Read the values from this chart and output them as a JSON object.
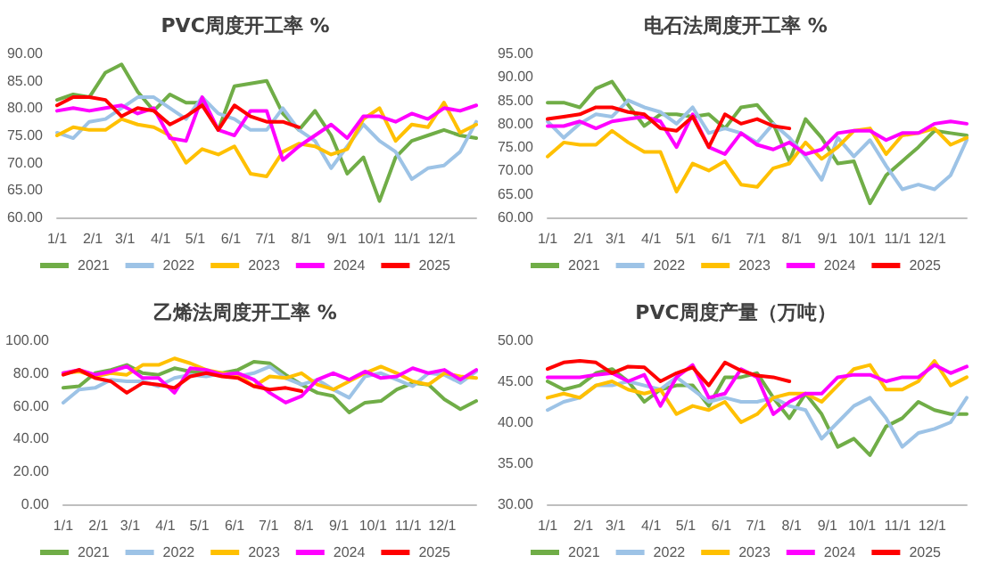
{
  "chart_data": [
    {
      "type": "line",
      "title": "PVC周度开工率 %",
      "legend": "bottom",
      "marker": "none",
      "line_style": "solid",
      "x": [
        "--01-01",
        "--01-15",
        "--01-29",
        "--02-12",
        "--02-26",
        "--03-12",
        "--03-26",
        "--04-09",
        "--04-23",
        "--05-07",
        "--05-21",
        "--06-04",
        "--06-18",
        "--07-02",
        "--07-16",
        "--07-30",
        "--08-13",
        "--08-27",
        "--09-10",
        "--09-24",
        "--10-08",
        "--10-22",
        "--11-05",
        "--11-19",
        "--12-03",
        "--12-17",
        "--12-31"
      ],
      "xlim": [
        "--01-01",
        "--12-31"
      ],
      "xticks": [
        {
          "value": "--01-01",
          "label": "1/1"
        },
        {
          "value": "--02-01",
          "label": "2/1"
        },
        {
          "value": "--03-01",
          "label": "3/1"
        },
        {
          "value": "--04-01",
          "label": "4/1"
        },
        {
          "value": "--05-01",
          "label": "5/1"
        },
        {
          "value": "--06-01",
          "label": "6/1"
        },
        {
          "value": "--07-01",
          "label": "7/1"
        },
        {
          "value": "--08-01",
          "label": "8/1"
        },
        {
          "value": "--09-01",
          "label": "9/1"
        },
        {
          "value": "--10-01",
          "label": "10/1"
        },
        {
          "value": "--11-01",
          "label": "11/1"
        },
        {
          "value": "--12-01",
          "label": "12/1"
        }
      ],
      "ylim": [
        60,
        90
      ],
      "yticks": [
        {
          "value": 60,
          "label": "60.00"
        },
        {
          "value": 65,
          "label": "65.00"
        },
        {
          "value": 70,
          "label": "70.00"
        },
        {
          "value": 75,
          "label": "75.00"
        },
        {
          "value": 80,
          "label": "80.00"
        },
        {
          "value": 85,
          "label": "85.00"
        },
        {
          "value": 90,
          "label": "90.00"
        }
      ],
      "series": [
        {
          "name": "2021",
          "color": "#70ad47",
          "values": [
            81.5,
            82.5,
            82,
            86.5,
            88,
            83,
            79.5,
            82.5,
            81,
            81,
            76,
            84,
            84.5,
            85,
            79,
            76,
            79.5,
            75,
            68,
            71,
            63,
            71,
            74,
            75,
            76,
            75,
            74.5
          ]
        },
        {
          "name": "2022",
          "color": "#9dc3e6",
          "values": [
            75.5,
            74.5,
            77.5,
            78,
            80,
            82,
            82,
            80,
            78,
            82,
            79,
            78,
            76,
            76,
            80,
            76,
            74,
            69,
            73,
            77,
            74,
            72,
            67,
            69,
            69.5,
            72,
            77.5
          ]
        },
        {
          "name": "2023",
          "color": "#ffc000",
          "values": [
            75,
            76.5,
            76,
            76,
            78,
            77,
            76.5,
            75,
            70,
            72.5,
            71.5,
            73,
            68,
            67.5,
            72,
            73.5,
            73,
            71.5,
            72.5,
            78,
            80,
            74,
            77,
            76.5,
            81,
            75.5,
            77
          ]
        },
        {
          "name": "2024",
          "color": "#ff00ff",
          "values": [
            79.5,
            80,
            79.5,
            80,
            80.5,
            79,
            80,
            74.5,
            74,
            82,
            76,
            75,
            79.5,
            79.5,
            70.5,
            73,
            75,
            77,
            74.5,
            78.5,
            78.5,
            77.5,
            79,
            78,
            80,
            79.5,
            80.5
          ]
        },
        {
          "name": "2025",
          "color": "#ff0000",
          "values": [
            80.5,
            82,
            82,
            81.5,
            78.5,
            80,
            79.5,
            77,
            78.5,
            80.5,
            76,
            80.5,
            78.5,
            77.5,
            77.5,
            76.5,
            null,
            null,
            null,
            null,
            null,
            null,
            null,
            null,
            null,
            null,
            null
          ]
        }
      ]
    },
    {
      "type": "line",
      "title": "电石法周度开工率 %",
      "legend": "bottom",
      "marker": "none",
      "line_style": "solid",
      "x": [
        "--01-01",
        "--01-15",
        "--01-29",
        "--02-12",
        "--02-26",
        "--03-12",
        "--03-26",
        "--04-09",
        "--04-23",
        "--05-07",
        "--05-21",
        "--06-04",
        "--06-18",
        "--07-02",
        "--07-16",
        "--07-30",
        "--08-13",
        "--08-27",
        "--09-10",
        "--09-24",
        "--10-08",
        "--10-22",
        "--11-05",
        "--11-19",
        "--12-03",
        "--12-17",
        "--12-31"
      ],
      "xlim": [
        "--01-01",
        "--12-31"
      ],
      "xticks": [
        {
          "value": "--01-01",
          "label": "1/1"
        },
        {
          "value": "--02-01",
          "label": "2/1"
        },
        {
          "value": "--03-01",
          "label": "3/1"
        },
        {
          "value": "--04-01",
          "label": "4/1"
        },
        {
          "value": "--05-01",
          "label": "5/1"
        },
        {
          "value": "--06-01",
          "label": "6/1"
        },
        {
          "value": "--07-01",
          "label": "7/1"
        },
        {
          "value": "--08-01",
          "label": "8/1"
        },
        {
          "value": "--09-01",
          "label": "9/1"
        },
        {
          "value": "--10-01",
          "label": "10/1"
        },
        {
          "value": "--11-01",
          "label": "11/1"
        },
        {
          "value": "--12-01",
          "label": "12/1"
        }
      ],
      "ylim": [
        60,
        95
      ],
      "yticks": [
        {
          "value": 60,
          "label": "60.00"
        },
        {
          "value": 65,
          "label": "65.00"
        },
        {
          "value": 70,
          "label": "70.00"
        },
        {
          "value": 75,
          "label": "75.00"
        },
        {
          "value": 80,
          "label": "80.00"
        },
        {
          "value": 85,
          "label": "85.00"
        },
        {
          "value": 90,
          "label": "90.00"
        },
        {
          "value": 95,
          "label": "95.00"
        }
      ],
      "series": [
        {
          "name": "2021",
          "color": "#70ad47",
          "values": [
            84.5,
            84.5,
            83.5,
            87.5,
            89,
            84,
            79.5,
            82,
            82,
            81.5,
            82,
            79,
            83.5,
            84,
            80,
            72,
            81,
            77,
            71.5,
            72,
            63,
            69,
            72,
            75,
            78.5,
            78,
            77.5
          ]
        },
        {
          "name": "2022",
          "color": "#9dc3e6",
          "values": [
            80.5,
            77,
            80,
            82,
            81.5,
            85,
            83.5,
            82.5,
            80,
            83.5,
            78,
            79,
            78,
            76,
            80,
            77,
            73,
            68,
            77,
            73,
            76.5,
            71,
            66,
            67,
            66,
            69,
            76.5
          ]
        },
        {
          "name": "2023",
          "color": "#ffc000",
          "values": [
            73,
            76,
            75.5,
            75.5,
            78.5,
            76,
            74,
            74,
            65.5,
            71.5,
            70,
            72,
            67,
            66.5,
            70.5,
            71.5,
            76,
            72.5,
            75,
            78.5,
            79,
            73.5,
            77.5,
            78,
            79,
            75.5,
            77
          ]
        },
        {
          "name": "2024",
          "color": "#ff00ff",
          "values": [
            79.5,
            79.5,
            80.5,
            79,
            80.5,
            81,
            81.5,
            80.5,
            75,
            82,
            75,
            73.5,
            78,
            75.5,
            74.5,
            76,
            73.5,
            74.5,
            78,
            78.5,
            78.5,
            76.5,
            78,
            78,
            80,
            80.5,
            80
          ]
        },
        {
          "name": "2025",
          "color": "#ff0000",
          "values": [
            81,
            81.5,
            82,
            83.5,
            83.5,
            82.5,
            82,
            79,
            78.5,
            81.5,
            75,
            82,
            80,
            81,
            79.5,
            79,
            null,
            null,
            null,
            null,
            null,
            null,
            null,
            null,
            null,
            null,
            null
          ]
        }
      ]
    },
    {
      "type": "line",
      "title": "乙烯法周度开工率 %",
      "legend": "bottom",
      "marker": "none",
      "line_style": "solid",
      "x": [
        "--01-01",
        "--01-15",
        "--01-29",
        "--02-12",
        "--02-26",
        "--03-12",
        "--03-26",
        "--04-09",
        "--04-23",
        "--05-07",
        "--05-21",
        "--06-04",
        "--06-18",
        "--07-02",
        "--07-16",
        "--07-30",
        "--08-13",
        "--08-27",
        "--09-10",
        "--09-24",
        "--10-08",
        "--10-22",
        "--11-05",
        "--11-19",
        "--12-03",
        "--12-17",
        "--12-31"
      ],
      "xlim": [
        "--01-01",
        "--12-31"
      ],
      "xticks": [
        {
          "value": "--01-01",
          "label": "1/1"
        },
        {
          "value": "--02-01",
          "label": "2/1"
        },
        {
          "value": "--03-01",
          "label": "3/1"
        },
        {
          "value": "--04-01",
          "label": "4/1"
        },
        {
          "value": "--05-01",
          "label": "5/1"
        },
        {
          "value": "--06-01",
          "label": "6/1"
        },
        {
          "value": "--07-01",
          "label": "7/1"
        },
        {
          "value": "--08-01",
          "label": "8/1"
        },
        {
          "value": "--09-01",
          "label": "9/1"
        },
        {
          "value": "--10-01",
          "label": "10/1"
        },
        {
          "value": "--11-01",
          "label": "11/1"
        },
        {
          "value": "--12-01",
          "label": "12/1"
        }
      ],
      "ylim": [
        0,
        100
      ],
      "yticks": [
        {
          "value": 0,
          "label": "0.00"
        },
        {
          "value": 20,
          "label": "20.00"
        },
        {
          "value": 40,
          "label": "40.00"
        },
        {
          "value": 60,
          "label": "60.00"
        },
        {
          "value": 80,
          "label": "80.00"
        },
        {
          "value": 100,
          "label": "100.00"
        }
      ],
      "series": [
        {
          "name": "2021",
          "color": "#70ad47",
          "values": [
            71,
            72,
            80,
            82,
            85,
            80,
            79,
            83,
            81,
            80,
            80,
            82,
            87,
            86,
            79,
            73,
            68,
            66,
            56,
            62,
            63,
            70,
            74,
            73,
            64,
            58,
            63
          ]
        },
        {
          "name": "2022",
          "color": "#9dc3e6",
          "values": [
            62,
            70,
            71,
            76,
            75,
            75,
            72,
            77,
            79,
            78,
            80,
            78,
            80,
            84,
            77,
            73,
            76,
            70,
            65,
            78,
            80,
            76,
            72,
            80,
            79,
            74,
            81
          ]
        },
        {
          "name": "2023",
          "color": "#ffc000",
          "values": [
            80,
            81,
            78,
            80,
            79,
            85,
            85,
            89,
            86,
            82,
            80,
            79,
            72,
            78,
            77,
            80,
            73,
            70,
            75,
            80,
            84,
            80,
            75,
            73,
            80,
            78,
            77
          ]
        },
        {
          "name": "2024",
          "color": "#ff00ff",
          "values": [
            80,
            82,
            79,
            81,
            84,
            77,
            77,
            68,
            83,
            82,
            79,
            80,
            76,
            68,
            62,
            66,
            76,
            80,
            76,
            81,
            77,
            78,
            83,
            80,
            82,
            76,
            82
          ]
        },
        {
          "name": "2025",
          "color": "#ff0000",
          "values": [
            79,
            82,
            77,
            75,
            68,
            74,
            73,
            71,
            78,
            80,
            78,
            77,
            72,
            70,
            71,
            69,
            null,
            null,
            null,
            null,
            null,
            null,
            null,
            null,
            null,
            null,
            null
          ]
        }
      ]
    },
    {
      "type": "line",
      "title": "PVC周度产量（万吨）",
      "legend": "bottom",
      "marker": "none",
      "line_style": "solid",
      "x": [
        "--01-01",
        "--01-15",
        "--01-29",
        "--02-12",
        "--02-26",
        "--03-12",
        "--03-26",
        "--04-09",
        "--04-23",
        "--05-07",
        "--05-21",
        "--06-04",
        "--06-18",
        "--07-02",
        "--07-16",
        "--07-30",
        "--08-13",
        "--08-27",
        "--09-10",
        "--09-24",
        "--10-08",
        "--10-22",
        "--11-05",
        "--11-19",
        "--12-03",
        "--12-17",
        "--12-31"
      ],
      "xlim": [
        "--01-01",
        "--12-31"
      ],
      "xticks": [
        {
          "value": "--01-01",
          "label": "1/1"
        },
        {
          "value": "--02-01",
          "label": "2/1"
        },
        {
          "value": "--03-01",
          "label": "3/1"
        },
        {
          "value": "--04-01",
          "label": "4/1"
        },
        {
          "value": "--05-01",
          "label": "5/1"
        },
        {
          "value": "--06-01",
          "label": "6/1"
        },
        {
          "value": "--07-01",
          "label": "7/1"
        },
        {
          "value": "--08-01",
          "label": "8/1"
        },
        {
          "value": "--09-01",
          "label": "9/1"
        },
        {
          "value": "--10-01",
          "label": "10/1"
        },
        {
          "value": "--11-01",
          "label": "11/1"
        },
        {
          "value": "--12-01",
          "label": "12/1"
        }
      ],
      "ylim": [
        30,
        50
      ],
      "yticks": [
        {
          "value": 30,
          "label": "30.00"
        },
        {
          "value": 35,
          "label": "35.00"
        },
        {
          "value": 40,
          "label": "40.00"
        },
        {
          "value": 45,
          "label": "45.00"
        },
        {
          "value": 50,
          "label": "50.00"
        }
      ],
      "series": [
        {
          "name": "2021",
          "color": "#70ad47",
          "values": [
            45,
            44,
            44.5,
            46,
            46.5,
            45,
            42.5,
            44,
            44.5,
            44.5,
            42,
            45.5,
            45.5,
            46,
            43,
            40.5,
            43.5,
            41,
            37,
            38,
            36,
            39.5,
            40.5,
            42.5,
            41.5,
            41,
            41
          ]
        },
        {
          "name": "2022",
          "color": "#9dc3e6",
          "values": [
            41.5,
            42.5,
            43,
            44.5,
            44.5,
            45,
            44.5,
            44,
            45.5,
            44,
            42.5,
            43,
            42.5,
            42.5,
            43,
            42,
            41.5,
            38,
            40,
            42,
            43,
            40.5,
            37,
            38.7,
            39.2,
            40,
            43
          ]
        },
        {
          "name": "2023",
          "color": "#ffc000",
          "values": [
            43,
            43.5,
            43,
            44.5,
            45,
            44,
            43.5,
            44,
            41,
            42,
            41.5,
            42.5,
            40,
            41,
            43,
            43.5,
            43.5,
            42.5,
            44.5,
            46.5,
            47,
            44,
            44,
            45,
            47.5,
            44.5,
            45.5
          ]
        },
        {
          "name": "2024",
          "color": "#ff00ff",
          "values": [
            45.5,
            45.5,
            45.5,
            45.8,
            46,
            45,
            45.8,
            42,
            45.5,
            47,
            43,
            43.5,
            46.5,
            45.5,
            41,
            42.5,
            43.5,
            43.5,
            45.5,
            45.8,
            45.8,
            45,
            45.5,
            45.5,
            47,
            46,
            46.8
          ]
        },
        {
          "name": "2025",
          "color": "#ff0000",
          "values": [
            46.5,
            47.3,
            47.5,
            47.3,
            46,
            46.8,
            46.7,
            45,
            46,
            46.7,
            44.5,
            47.3,
            46.3,
            45.7,
            45.5,
            45,
            null,
            null,
            null,
            null,
            null,
            null,
            null,
            null,
            null,
            null,
            null
          ]
        }
      ]
    }
  ]
}
